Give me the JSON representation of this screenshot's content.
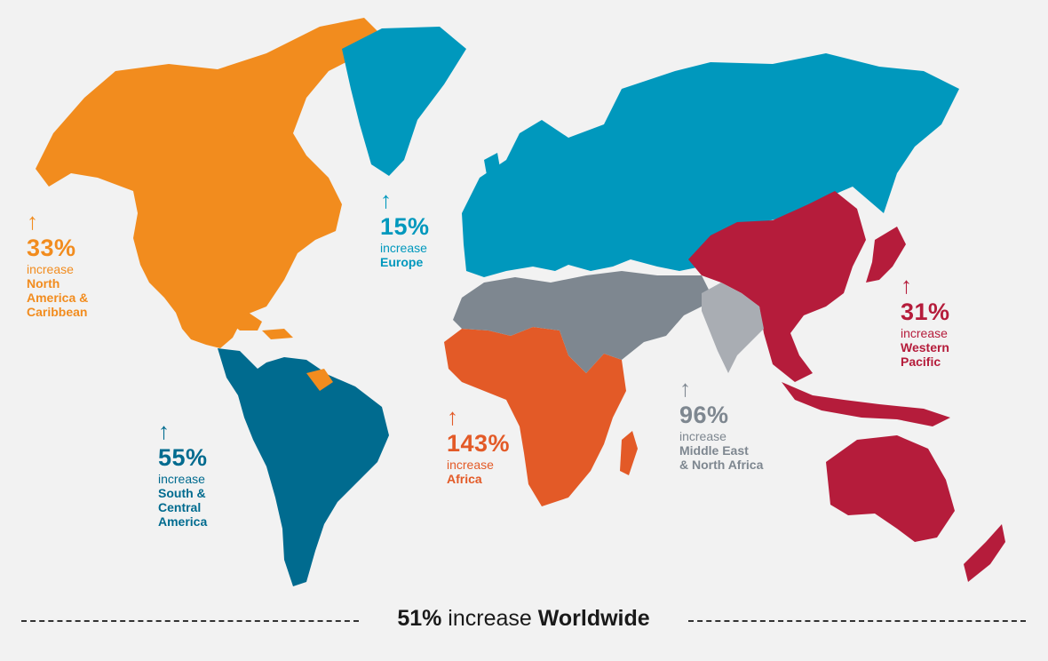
{
  "colors": {
    "background": "#f2f2f2",
    "north_america": "#f28c1e",
    "europe": "#0098bd",
    "western_pacific": "#b51c3b",
    "south_central_america": "#006b8f",
    "africa": "#e35a27",
    "middle_east": "#7e8790",
    "south_asia": "#a9adb3",
    "footer_text": "#1a1a1a"
  },
  "regions": {
    "north_america": {
      "arrow": "↑",
      "pct": "33%",
      "label": "increase",
      "name": "North\nAmerica &\nCaribbean",
      "color": "#f28c1e"
    },
    "europe": {
      "arrow": "↑",
      "pct": "15%",
      "label": "increase",
      "name": "Europe",
      "color": "#0098bd"
    },
    "western_pacific": {
      "arrow": "↑",
      "pct": "31%",
      "label": "increase",
      "name": "Western\nPacific",
      "color": "#b51c3b"
    },
    "south_central_america": {
      "arrow": "↑",
      "pct": "55%",
      "label": "increase",
      "name": "South &\nCentral\nAmerica",
      "color": "#006b8f"
    },
    "africa": {
      "arrow": "↑",
      "pct": "143%",
      "label": "increase",
      "name": "Africa",
      "color": "#e35a27"
    },
    "middle_east": {
      "arrow": "↑",
      "pct": "96%",
      "label": "increase",
      "name": "Middle East\n& North Africa",
      "color": "#7e8790"
    }
  },
  "footer": {
    "pct": "51%",
    "middle": " increase ",
    "region": "Worldwide"
  }
}
